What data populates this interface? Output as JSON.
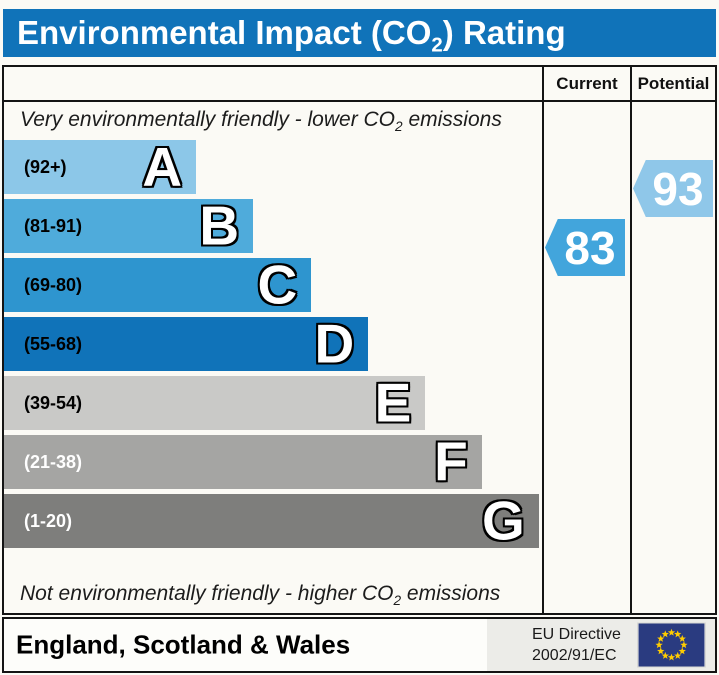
{
  "title_bar": {
    "pre": "Environmental Impact (CO",
    "sub": "2",
    "post": ") Rating",
    "bg_color": "#1073B9"
  },
  "table_header": {
    "current": "Current",
    "potential": "Potential"
  },
  "notes": {
    "top_pre": "Very environmentally friendly - lower CO",
    "top_sub": "2",
    "top_post": " emissions",
    "bottom_pre": "Not environmentally friendly - higher CO",
    "bottom_sub": "2",
    "bottom_post": " emissions"
  },
  "bands": [
    {
      "letter": "A",
      "range": "(92+)",
      "color": "#8CC7E8",
      "label_color": "#000000",
      "width_pct": 35.7
    },
    {
      "letter": "B",
      "range": "(81-91)",
      "color": "#4FABDB",
      "label_color": "#000000",
      "width_pct": 46.3
    },
    {
      "letter": "C",
      "range": "(69-80)",
      "color": "#2E95CF",
      "label_color": "#000000",
      "width_pct": 57.1
    },
    {
      "letter": "D",
      "range": "(55-68)",
      "color": "#1073B9",
      "label_color": "#000000",
      "width_pct": 67.7
    },
    {
      "letter": "E",
      "range": "(39-54)",
      "color": "#C9C9C7",
      "label_color": "#000000",
      "width_pct": 78.3
    },
    {
      "letter": "F",
      "range": "(21-38)",
      "color": "#A5A5A3",
      "label_color": "#FFFFFF",
      "width_pct": 88.8
    },
    {
      "letter": "G",
      "range": "(1-20)",
      "color": "#7E7E7C",
      "label_color": "#FFFFFF",
      "width_pct": 99.4
    }
  ],
  "indicators": {
    "current": {
      "value": "83",
      "band": "B",
      "band_index": 1,
      "color": "#42A5DC"
    },
    "potential": {
      "value": "93",
      "band": "A",
      "band_index": 0,
      "color": "#8FC7E9"
    }
  },
  "footer": {
    "region": "England, Scotland & Wales",
    "directive_line1": "EU Directive",
    "directive_line2": "2002/91/EC",
    "flag_blue": "#2A3B80",
    "flag_star_color": "#FFCC00"
  },
  "chart_data": {
    "type": "bar",
    "title": "Environmental Impact (CO2) Rating",
    "categories": [
      "A",
      "B",
      "C",
      "D",
      "E",
      "F",
      "G"
    ],
    "ranges": [
      "92+",
      "81-91",
      "69-80",
      "55-68",
      "39-54",
      "21-38",
      "1-20"
    ],
    "relative_bar_widths_pct": [
      35.7,
      46.3,
      57.1,
      67.7,
      78.3,
      88.8,
      99.4
    ],
    "columns": [
      "Current",
      "Potential"
    ],
    "current_value": 83,
    "current_band": "B",
    "potential_value": 93,
    "potential_band": "A",
    "top_note": "Very environmentally friendly - lower CO2 emissions",
    "bottom_note": "Not environmentally friendly - higher CO2 emissions",
    "footer_region": "England, Scotland & Wales",
    "footer_directive": "EU Directive 2002/91/EC",
    "legend_position": "none",
    "grid": false
  }
}
